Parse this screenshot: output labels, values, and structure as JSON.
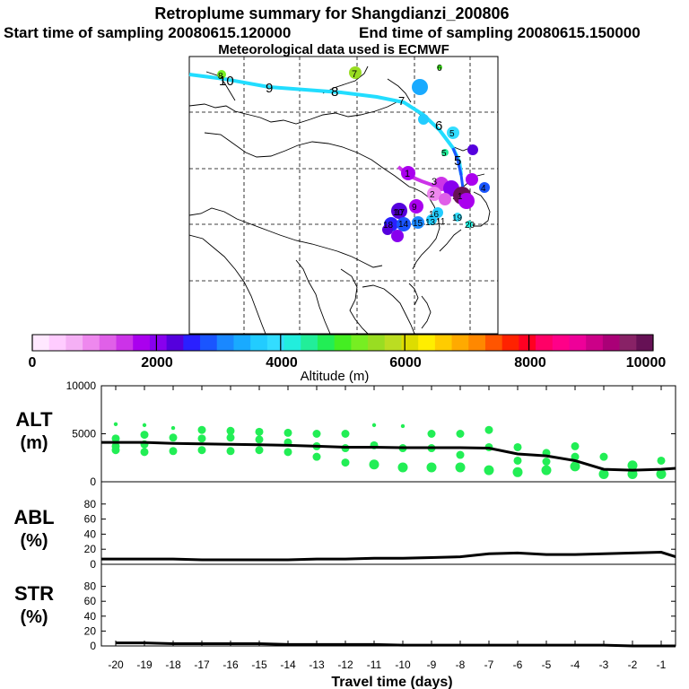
{
  "title": {
    "line1": "Retroplume summary for Shangdianzi_200806",
    "line2a": "Start time of sampling 20080615.120000",
    "line2b": "End time of sampling 20080615.150000",
    "line3": "Meteorological data used is ECMWF"
  },
  "colorbar": {
    "label": "Altitude (m)",
    "range": [
      0,
      10000
    ],
    "tick_labels": [
      "0",
      "2000",
      "4000",
      "6000",
      "8000",
      "10000"
    ],
    "colors": [
      "#ffe8ff",
      "#ffccff",
      "#f5b0f5",
      "#ee88ee",
      "#e060e8",
      "#cc33e8",
      "#aa00ee",
      "#8800ee",
      "#5500dd",
      "#2a20ff",
      "#1a55ff",
      "#1a88ff",
      "#19aaff",
      "#22ccff",
      "#33ddff",
      "#22eedd",
      "#22ee99",
      "#22ee55",
      "#44ee22",
      "#77ee22",
      "#99dd22",
      "#bbdd22",
      "#dddd00",
      "#ffee00",
      "#ffcc00",
      "#ffaa00",
      "#ff8800",
      "#ff5500",
      "#ff2200",
      "#ff0022",
      "#ff0066",
      "#ff0088",
      "#ee0099",
      "#cc0088",
      "#aa0077",
      "#882266",
      "#661155"
    ]
  },
  "map_labels": [
    {
      "t": "10",
      "c": "#000000"
    },
    {
      "t": "9",
      "c": "#000000"
    },
    {
      "t": "8",
      "c": "#000000"
    },
    {
      "t": "7",
      "c": "#000000"
    },
    {
      "t": "6",
      "c": "#000000"
    },
    {
      "t": "5",
      "c": "#000000"
    },
    {
      "t": "8",
      "c": "#000000"
    },
    {
      "t": "7",
      "c": "#000000"
    },
    {
      "t": "6",
      "c": "#000000"
    },
    {
      "t": "5",
      "c": "#000000"
    },
    {
      "t": "5",
      "c": "#000000"
    },
    {
      "t": "3",
      "c": "#000000"
    },
    {
      "t": "4",
      "c": "#000000"
    },
    {
      "t": "2",
      "c": "#000000"
    },
    {
      "t": "1",
      "c": "#000000"
    },
    {
      "t": "1",
      "c": "#000000"
    },
    {
      "t": "16",
      "c": "#000000"
    },
    {
      "t": "17",
      "c": "#000000"
    },
    {
      "t": "18",
      "c": "#000000"
    },
    {
      "t": "15",
      "c": "#000000"
    },
    {
      "t": "14",
      "c": "#000000"
    },
    {
      "t": "13",
      "c": "#000000"
    },
    {
      "t": "11",
      "c": "#000000"
    },
    {
      "t": "19",
      "c": "#000000"
    },
    {
      "t": "20",
      "c": "#000000"
    },
    {
      "t": "9",
      "c": "#000000"
    },
    {
      "t": "10",
      "c": "#000000"
    }
  ],
  "chart_data": [
    {
      "type": "line",
      "panel": "ALT",
      "ylabel": "ALT (m)",
      "ylim": [
        0,
        10000
      ],
      "yticks": [
        "0",
        "5000",
        "10000"
      ],
      "x": [
        -20.5,
        -20,
        -19,
        -18,
        -17,
        -16,
        -15,
        -14,
        -13,
        -12,
        -11,
        -10,
        -9,
        -8,
        -7,
        -6,
        -5,
        -4,
        -3,
        -2,
        -1,
        -0.5
      ],
      "series": [
        {
          "name": "mean altitude",
          "values": [
            4100,
            4100,
            4100,
            4000,
            3950,
            3900,
            3850,
            3800,
            3700,
            3600,
            3600,
            3550,
            3550,
            3550,
            3500,
            2900,
            2700,
            2200,
            1300,
            1200,
            1300,
            1400
          ]
        }
      ],
      "spread_points": {
        "x": [
          -20,
          -20,
          -20,
          -20,
          -19,
          -19,
          -19,
          -19,
          -18,
          -18,
          -18,
          -17,
          -17,
          -17,
          -16,
          -16,
          -16,
          -15,
          -15,
          -15,
          -14,
          -14,
          -14,
          -13,
          -13,
          -13,
          -12,
          -12,
          -12,
          -11,
          -11,
          -11,
          -10,
          -10,
          -10,
          -9,
          -9,
          -9,
          -8,
          -8,
          -8,
          -7,
          -7,
          -7,
          -6,
          -6,
          -6,
          -5,
          -5,
          -5,
          -4,
          -4,
          -4,
          -3,
          -3,
          -2,
          -2,
          -1,
          -1
        ],
        "y": [
          6000,
          4500,
          3700,
          3300,
          5900,
          4900,
          3900,
          3100,
          5600,
          4600,
          3200,
          5400,
          4500,
          3300,
          5300,
          4600,
          3200,
          5200,
          4400,
          3300,
          5100,
          4100,
          3100,
          5000,
          3700,
          2600,
          5000,
          3500,
          2000,
          5900,
          3800,
          1800,
          5800,
          3500,
          1500,
          5000,
          3500,
          1500,
          5000,
          2800,
          1500,
          5400,
          3600,
          1200,
          3600,
          2200,
          1000,
          3000,
          2100,
          1200,
          3700,
          2600,
          1600,
          2600,
          800,
          1700,
          800,
          2200,
          800
        ]
      },
      "xlim": [
        -20.5,
        -0.5
      ]
    },
    {
      "type": "line",
      "panel": "ABL",
      "ylabel": "ABL (%)",
      "ylim": [
        0,
        100
      ],
      "yticks": [
        "0",
        "20",
        "40",
        "60",
        "80"
      ],
      "x": [
        -20.5,
        -20,
        -19,
        -18,
        -17,
        -16,
        -15,
        -14,
        -13,
        -12,
        -11,
        -10,
        -9,
        -8,
        -7,
        -6,
        -5,
        -4,
        -3,
        -2,
        -1,
        -0.5
      ],
      "series": [
        {
          "name": "ABL fraction",
          "values": [
            7,
            7,
            7,
            7,
            6,
            6,
            6,
            6,
            7,
            7,
            8,
            8,
            9,
            10,
            14,
            15,
            13,
            13,
            14,
            15,
            16,
            10
          ]
        }
      ],
      "xlim": [
        -20.5,
        -0.5
      ]
    },
    {
      "type": "line",
      "panel": "STR",
      "ylabel": "STR (%)",
      "ylim": [
        0,
        100
      ],
      "yticks": [
        "0",
        "20",
        "40",
        "60",
        "80"
      ],
      "x": [
        -20,
        -19,
        -18,
        -17,
        -16,
        -15,
        -14,
        -13,
        -12,
        -11,
        -10,
        -9,
        -8,
        -7,
        -6,
        -5,
        -4,
        -3,
        -2,
        -1,
        -0.5
      ],
      "series": [
        {
          "name": "stratospheric fraction",
          "values": [
            4,
            4,
            3,
            3,
            3,
            3,
            2,
            2,
            2,
            2,
            1,
            1,
            1,
            1,
            1,
            1,
            1,
            1,
            0,
            0,
            0
          ]
        }
      ],
      "xlabel": "Travel time (days)",
      "xticks": [
        "-20",
        "-19",
        "-18",
        "-17",
        "-16",
        "-15",
        "-14",
        "-13",
        "-12",
        "-11",
        "-10",
        "-9",
        "-8",
        "-7",
        "-6",
        "-5",
        "-4",
        "-3",
        "-2",
        "-1"
      ],
      "xlim": [
        -20.5,
        -0.5
      ]
    }
  ]
}
